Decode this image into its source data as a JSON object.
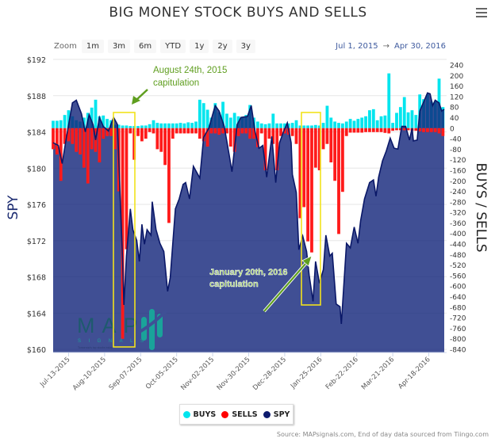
{
  "title": "BIG MONEY STOCK BUYS AND SELLS",
  "menu_icon": "hamburger-menu-icon",
  "zoom": {
    "label": "Zoom",
    "buttons": [
      "1m",
      "3m",
      "6m",
      "YTD",
      "1y",
      "2y",
      "3y"
    ]
  },
  "range": {
    "from": "Jul 1, 2015",
    "arrow": "→",
    "to": "Apr 30, 2016"
  },
  "legend": [
    {
      "label": "BUYS",
      "color": "#00e5ee"
    },
    {
      "label": "SELLS",
      "color": "#ff0000"
    },
    {
      "label": "SPY",
      "color": "#0d1b6e"
    }
  ],
  "source": "Source: MAPsignals.com, End of day data sourced from Tiingo.com",
  "logo": {
    "text": "MAP",
    "sub": "SIGNALS",
    "tagline": "Tomorrow's top stocks today"
  },
  "annotations": [
    {
      "line1": "August 24th, 2015",
      "line2": "capitulation"
    },
    {
      "line1": "January 20th, 2016",
      "line2": "capitulation"
    }
  ],
  "chart_data": {
    "type": "bar+area",
    "title": "BIG MONEY STOCK BUYS AND SELLS",
    "start_date": "2015-07-01",
    "end_date": "2016-04-30",
    "x_ticks": [
      "Jul-13-2015",
      "Aug-10-2015",
      "Sep-07-2015",
      "Oct-05-2015",
      "Nov-02-2015",
      "Nov-30-2015",
      "Dec-28-2015",
      "Jan-25-2016",
      "Feb-22-2016",
      "Mar-21-2016",
      "Apr-18-2016"
    ],
    "x_tick_day_offsets": [
      12,
      40,
      68,
      96,
      124,
      152,
      180,
      208,
      236,
      264,
      292
    ],
    "left_axis": {
      "title": "SPY",
      "range": [
        160,
        192
      ],
      "ticks": [
        "$192",
        "$188",
        "$184",
        "$180",
        "$176",
        "$172",
        "$168",
        "$164",
        "$160"
      ],
      "tick_values": [
        192,
        188,
        184,
        180,
        176,
        172,
        168,
        164,
        160
      ]
    },
    "right_axis": {
      "title": "BUYS / SELLS",
      "range": [
        -840,
        240
      ],
      "ticks": [
        240,
        200,
        160,
        120,
        80,
        40,
        0,
        -40,
        -80,
        -120,
        -160,
        -200,
        -240,
        -280,
        -320,
        -360,
        -400,
        -440,
        -480,
        -520,
        -560,
        -600,
        -640,
        -680,
        -720,
        -760,
        -800,
        -840
      ]
    },
    "grid": true,
    "legend_position": "bottom-center",
    "bar_step_days": 3,
    "buys": [
      28,
      28,
      30,
      50,
      68,
      45,
      30,
      25,
      40,
      58,
      78,
      108,
      45,
      48,
      35,
      30,
      13,
      13,
      10,
      10,
      8,
      8,
      8,
      10,
      10,
      15,
      30,
      20,
      18,
      18,
      18,
      18,
      18,
      20,
      18,
      22,
      20,
      25,
      108,
      95,
      70,
      40,
      95,
      60,
      100,
      55,
      40,
      58,
      45,
      40,
      50,
      88,
      40,
      25,
      18,
      15,
      18,
      55,
      18,
      18,
      18,
      18,
      20,
      30,
      10,
      10,
      10,
      10,
      12,
      10,
      20,
      85,
      40,
      25,
      20,
      18,
      25,
      35,
      28,
      35,
      40,
      45,
      68,
      72,
      30,
      45,
      48,
      208,
      20,
      58,
      80,
      118,
      60,
      68,
      50,
      128,
      110,
      128,
      100,
      100,
      188,
      80
    ],
    "sells": [
      -80,
      -100,
      -200,
      -60,
      -50,
      -60,
      -90,
      -100,
      -150,
      -210,
      -80,
      -90,
      -130,
      -40,
      -30,
      -30,
      -80,
      -240,
      -800,
      -460,
      -20,
      -120,
      -30,
      -50,
      -40,
      -15,
      -20,
      -80,
      -90,
      -140,
      -360,
      -40,
      -20,
      -20,
      -20,
      -20,
      -20,
      -20,
      -40,
      -50,
      -70,
      -20,
      -20,
      -25,
      -20,
      -20,
      -70,
      -90,
      -30,
      -20,
      -20,
      -40,
      -40,
      -72,
      -20,
      -160,
      -40,
      -60,
      -160,
      -30,
      -20,
      -25,
      -30,
      -60,
      -342,
      -300,
      -430,
      -472,
      -150,
      -160,
      -80,
      -60,
      -130,
      -200,
      -402,
      -242,
      -30,
      -17,
      -17,
      -17,
      -17,
      -15,
      -15,
      -15,
      -15,
      -15,
      -18,
      -20,
      -10,
      -8,
      -8,
      -8,
      -8,
      -10,
      -10,
      -12,
      -15,
      -15,
      -15,
      -15,
      -20,
      -30
    ],
    "spy": {
      "day_offsets": [
        0,
        4,
        7,
        10,
        15,
        18,
        22,
        25,
        28,
        31,
        33,
        36,
        39,
        43,
        47,
        50,
        52,
        54,
        55,
        57,
        60,
        62,
        65,
        67,
        69,
        71,
        73,
        76,
        77,
        80,
        83,
        86,
        89,
        91,
        95,
        98,
        101,
        103,
        106,
        109,
        114,
        117,
        121,
        126,
        129,
        133,
        137,
        139,
        141,
        143,
        146,
        151,
        154,
        157,
        160,
        163,
        166,
        170,
        173,
        176,
        179,
        182,
        185,
        186,
        189,
        191,
        194,
        197,
        199,
        202,
        204,
        207,
        210,
        212,
        215,
        217,
        220,
        223,
        224,
        228,
        231,
        234,
        237,
        239,
        242,
        246,
        249,
        251,
        253,
        256,
        259,
        262,
        265,
        268,
        271,
        274,
        277,
        279,
        280,
        283,
        285,
        291,
        293,
        295,
        297,
        300,
        302,
        304
      ],
      "prices": [
        182.8,
        182.5,
        180.5,
        183.1,
        187.2,
        187.5,
        186,
        184,
        185.9,
        184.8,
        183.1,
        185.6,
        184.6,
        184.1,
        185.6,
        184.8,
        177.3,
        169.7,
        164.9,
        170.3,
        175.5,
        173.2,
        172,
        169.7,
        173.8,
        171.6,
        173.2,
        172.6,
        176.3,
        173.2,
        171.7,
        170.8,
        166.4,
        167.9,
        175.5,
        176.6,
        178.2,
        178.4,
        176.6,
        180.2,
        178.9,
        183.4,
        184.4,
        186.9,
        186.3,
        184.6,
        181.3,
        179.6,
        182.2,
        184.8,
        185.6,
        185.7,
        186.9,
        184,
        182.2,
        182.5,
        179,
        183.5,
        178.4,
        182.8,
        184,
        185,
        182.8,
        179.3,
        177.3,
        171,
        172.5,
        170.8,
        168.2,
        165.3,
        169.7,
        167.3,
        168.8,
        172.6,
        170.3,
        170.6,
        165,
        164.7,
        162.8,
        171.7,
        171.2,
        173.5,
        171.7,
        174.2,
        176.6,
        178.4,
        178.7,
        176.9,
        179,
        180.8,
        181.9,
        183.3,
        182.2,
        182.1,
        184.6,
        184.6,
        183.1,
        184.4,
        183,
        183.1,
        186.3,
        188.3,
        188.2,
        186.9,
        187.5,
        187.2,
        186.3,
        186.5
      ]
    }
  }
}
